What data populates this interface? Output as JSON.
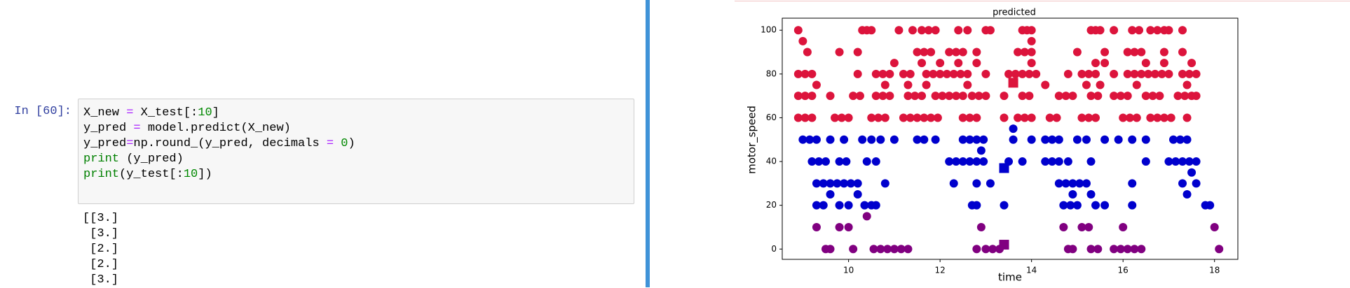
{
  "notebook": {
    "prompt": "In [60]:",
    "input": {
      "lines": [
        {
          "tokens": [
            {
              "text": "X_new ",
              "c": "#000000"
            },
            {
              "text": "=",
              "c": "#aa22ff"
            },
            {
              "text": " X_test[:",
              "c": "#000000"
            },
            {
              "text": "10",
              "c": "#008800"
            },
            {
              "text": "]",
              "c": "#000000"
            }
          ]
        },
        {
          "tokens": [
            {
              "text": "y_pred ",
              "c": "#000000"
            },
            {
              "text": "=",
              "c": "#aa22ff"
            },
            {
              "text": " model.predict(X_new)",
              "c": "#000000"
            }
          ]
        },
        {
          "tokens": [
            {
              "text": "y_pred",
              "c": "#000000"
            },
            {
              "text": "=",
              "c": "#aa22ff"
            },
            {
              "text": "np.round_(y_pred, decimals ",
              "c": "#000000"
            },
            {
              "text": "=",
              "c": "#aa22ff"
            },
            {
              "text": " 0",
              "c": "#008800"
            },
            {
              "text": ")",
              "c": "#000000"
            }
          ]
        },
        {
          "tokens": [
            {
              "text": "print",
              "c": "#008000"
            },
            {
              "text": " (y_pred)",
              "c": "#000000"
            }
          ]
        },
        {
          "tokens": [
            {
              "text": "print",
              "c": "#008000"
            },
            {
              "text": "(y_test[:",
              "c": "#000000"
            },
            {
              "text": "10",
              "c": "#008800"
            },
            {
              "text": "])",
              "c": "#000000"
            }
          ]
        }
      ]
    },
    "output": [
      "[[3.]",
      " [3.]",
      " [2.]",
      " [2.]",
      " [3.]"
    ]
  },
  "chart_data": {
    "type": "scatter",
    "title": "predicted",
    "x_label": "time",
    "y_label": "motor_speed",
    "xlim": [
      8.55,
      18.51
    ],
    "ylim": [
      -4.7,
      105.5
    ],
    "xticks": [
      10,
      12,
      14,
      16,
      18
    ],
    "yticks": [
      0,
      20,
      40,
      60,
      80,
      100
    ],
    "series": [
      {
        "color": "#dc143c",
        "marker": "circle",
        "x": [
          8.9,
          10.3,
          10.4,
          10.5,
          11.1,
          11.4,
          11.6,
          11.75,
          11.9,
          12.4,
          12.6,
          13.0,
          13.1,
          13.8,
          13.9,
          14.0,
          15.3,
          15.4,
          15.5,
          15.8,
          16.2,
          16.35,
          16.6,
          16.75,
          16.9,
          17.0,
          17.3,
          9.0,
          14.0,
          9.1,
          9.8,
          10.2,
          11.5,
          11.65,
          11.8,
          12.2,
          12.35,
          12.5,
          12.8,
          13.7,
          13.85,
          14.0,
          15.0,
          15.6,
          16.1,
          16.25,
          16.4,
          16.9,
          17.3,
          11.0,
          11.6,
          12.0,
          12.4,
          12.8,
          14.0,
          15.4,
          15.6,
          16.5,
          16.9,
          17.5,
          8.9,
          9.05,
          9.2,
          10.2,
          10.6,
          10.75,
          10.9,
          11.2,
          11.35,
          11.7,
          11.85,
          12.0,
          12.15,
          12.3,
          12.45,
          12.6,
          13.0,
          13.5,
          13.65,
          13.8,
          13.95,
          14.1,
          14.8,
          15.1,
          15.25,
          15.4,
          15.8,
          16.1,
          16.25,
          16.4,
          16.55,
          16.7,
          16.85,
          17.0,
          17.3,
          17.45,
          17.6,
          9.3,
          10.8,
          11.3,
          11.7,
          12.6,
          14.3,
          15.2,
          15.5,
          16.3,
          17.4,
          8.9,
          9.05,
          9.2,
          9.6,
          10.1,
          10.25,
          10.6,
          10.75,
          10.9,
          11.3,
          11.45,
          11.6,
          11.9,
          12.05,
          12.2,
          12.35,
          12.5,
          12.7,
          12.85,
          13.0,
          13.4,
          13.8,
          13.95,
          14.6,
          14.75,
          14.9,
          15.3,
          15.45,
          15.8,
          15.95,
          16.1,
          16.5,
          16.65,
          16.8,
          17.2,
          17.35,
          17.5,
          17.6,
          8.9,
          9.05,
          9.2,
          9.7,
          9.85,
          10.0,
          10.5,
          10.65,
          10.8,
          11.2,
          11.35,
          11.5,
          11.65,
          11.8,
          11.95,
          12.5,
          12.65,
          12.8,
          13.4,
          13.7,
          13.85,
          14.0,
          14.4,
          14.55,
          15.1,
          15.25,
          15.4,
          16.0,
          16.15,
          16.3,
          16.6,
          16.75,
          16.9,
          17.05,
          17.4
        ],
        "values": [
          100,
          100,
          100,
          100,
          100,
          100,
          100,
          100,
          100,
          100,
          100,
          100,
          100,
          100,
          100,
          100,
          100,
          100,
          100,
          100,
          100,
          100,
          100,
          100,
          100,
          100,
          100,
          95,
          95,
          90,
          90,
          90,
          90,
          90,
          90,
          90,
          90,
          90,
          90,
          90,
          90,
          90,
          90,
          90,
          90,
          90,
          90,
          90,
          90,
          85,
          85,
          85,
          85,
          85,
          85,
          85,
          85,
          85,
          85,
          85,
          80,
          80,
          80,
          80,
          80,
          80,
          80,
          80,
          80,
          80,
          80,
          80,
          80,
          80,
          80,
          80,
          80,
          80,
          80,
          80,
          80,
          80,
          80,
          80,
          80,
          80,
          80,
          80,
          80,
          80,
          80,
          80,
          80,
          80,
          80,
          80,
          80,
          75,
          75,
          75,
          75,
          75,
          75,
          75,
          75,
          75,
          75,
          70,
          70,
          70,
          70,
          70,
          70,
          70,
          70,
          70,
          70,
          70,
          70,
          70,
          70,
          70,
          70,
          70,
          70,
          70,
          70,
          70,
          70,
          70,
          70,
          70,
          70,
          70,
          70,
          70,
          70,
          70,
          70,
          70,
          70,
          70,
          70,
          70,
          70,
          60,
          60,
          60,
          60,
          60,
          60,
          60,
          60,
          60,
          60,
          60,
          60,
          60,
          60,
          60,
          60,
          60,
          60,
          60,
          60,
          60,
          60,
          60,
          60,
          60,
          60,
          60,
          60,
          60,
          60,
          60,
          60,
          60,
          60,
          60
        ]
      },
      {
        "color": "#0000cd",
        "marker": "circle",
        "x": [
          13.6,
          9.0,
          9.15,
          9.3,
          9.6,
          9.9,
          10.3,
          10.5,
          10.7,
          11.0,
          11.5,
          11.65,
          11.9,
          12.5,
          12.65,
          12.8,
          12.95,
          13.6,
          14.0,
          14.3,
          14.45,
          14.6,
          15.0,
          15.2,
          15.6,
          15.9,
          16.2,
          16.5,
          17.1,
          17.25,
          17.4,
          12.9,
          9.2,
          9.35,
          9.5,
          9.8,
          9.95,
          10.4,
          10.6,
          12.2,
          12.35,
          12.5,
          12.65,
          12.8,
          12.95,
          13.5,
          13.8,
          14.3,
          14.45,
          14.6,
          14.8,
          15.3,
          16.5,
          17.0,
          17.15,
          17.3,
          17.45,
          17.6,
          17.5,
          9.3,
          9.45,
          9.6,
          9.75,
          9.9,
          10.05,
          10.2,
          10.8,
          12.3,
          12.8,
          13.1,
          14.6,
          14.75,
          14.9,
          15.05,
          15.2,
          16.2,
          17.3,
          17.6,
          9.6,
          10.2,
          14.9,
          15.3,
          17.4,
          9.3,
          9.45,
          9.8,
          10.0,
          10.35,
          10.5,
          10.6,
          12.7,
          12.8,
          13.4,
          14.7,
          14.85,
          15.0,
          15.4,
          15.6,
          16.2,
          17.8,
          17.9
        ],
        "values": [
          55,
          50,
          50,
          50,
          50,
          50,
          50,
          50,
          50,
          50,
          50,
          50,
          50,
          50,
          50,
          50,
          50,
          50,
          50,
          50,
          50,
          50,
          50,
          50,
          50,
          50,
          50,
          50,
          50,
          50,
          50,
          45,
          40,
          40,
          40,
          40,
          40,
          40,
          40,
          40,
          40,
          40,
          40,
          40,
          40,
          40,
          40,
          40,
          40,
          40,
          40,
          40,
          40,
          40,
          40,
          40,
          40,
          40,
          35,
          30,
          30,
          30,
          30,
          30,
          30,
          30,
          30,
          30,
          30,
          30,
          30,
          30,
          30,
          30,
          30,
          30,
          30,
          30,
          25,
          25,
          25,
          25,
          25,
          20,
          20,
          20,
          20,
          20,
          20,
          20,
          20,
          20,
          20,
          20,
          20,
          20,
          20,
          20,
          20,
          20,
          20
        ]
      },
      {
        "color": "#800080",
        "marker": "circle",
        "x": [
          10.4,
          9.3,
          9.8,
          10.0,
          12.9,
          14.7,
          15.1,
          15.25,
          16.0,
          18.0,
          9.5,
          9.6,
          10.1,
          10.55,
          10.7,
          10.85,
          11.0,
          11.15,
          11.3,
          12.8,
          13.0,
          13.15,
          13.3,
          14.8,
          14.9,
          15.3,
          15.45,
          15.8,
          15.95,
          16.1,
          16.25,
          16.4,
          18.1
        ],
        "values": [
          15,
          10,
          10,
          10,
          10,
          10,
          10,
          10,
          10,
          10,
          0,
          0,
          0,
          0,
          0,
          0,
          0,
          0,
          0,
          0,
          0,
          0,
          0,
          0,
          0,
          0,
          0,
          0,
          0,
          0,
          0,
          0,
          0
        ]
      },
      {
        "color": "#dc143c",
        "marker": "square",
        "x": [
          13.6
        ],
        "values": [
          76
        ]
      },
      {
        "color": "#0000cd",
        "marker": "square",
        "x": [
          13.4
        ],
        "values": [
          37
        ]
      },
      {
        "color": "#800080",
        "marker": "square",
        "x": [
          13.4
        ],
        "values": [
          2
        ]
      }
    ]
  }
}
